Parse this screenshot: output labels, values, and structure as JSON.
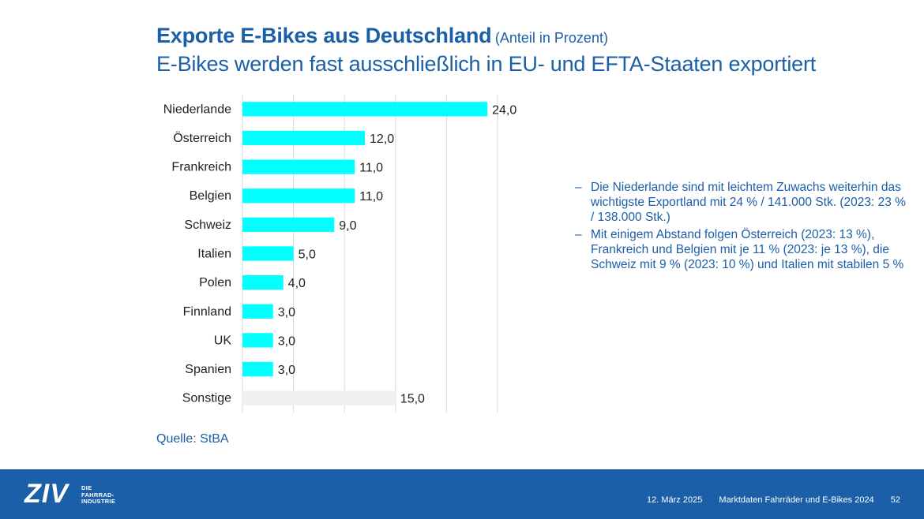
{
  "title": {
    "main": "Exporte E-Bikes aus Deutschland",
    "sub": "(Anteil in Prozent)",
    "line2": "E-Bikes werden fast ausschließlich in EU- und EFTA-Staaten exportiert"
  },
  "bullets": [
    "Die Niederlande sind mit leichtem Zuwachs weiterhin das wichtigste Exportland mit 24 % / 141.000 Stk. (2023: 23 % / 138.000 Stk.)",
    "Mit einigem Abstand folgen Österreich (2023: 13 %), Frankreich und Belgien mit je 11 % (2023: je 13 %), die Schweiz mit 9 % (2023: 10 %) und Italien mit stabilen 5 %"
  ],
  "bullet_dash": "–",
  "source": "Quelle: StBA",
  "footer": {
    "logo": "ZIV",
    "logo_line1": "DIE",
    "logo_line2": "FAHRRAD-",
    "logo_line3": "INDUSTRIE",
    "date": "12. März 2025",
    "doc_title": "Marktdaten Fahrräder und E-Bikes 2024",
    "page": "52"
  },
  "colors": {
    "brand_blue": "#1b5fa8",
    "bar_cyan": "#00ffff",
    "bar_other": "#f0f0f0",
    "gridline": "#d9d9d9",
    "label_text": "#1f1f1f"
  },
  "chart_data": {
    "type": "bar",
    "orientation": "horizontal",
    "categories": [
      "Niederlande",
      "Österreich",
      "Frankreich",
      "Belgien",
      "Schweiz",
      "Italien",
      "Polen",
      "Finnland",
      "UK",
      "Spanien",
      "Sonstige"
    ],
    "values": [
      24.0,
      12.0,
      11.0,
      11.0,
      9.0,
      5.0,
      4.0,
      3.0,
      3.0,
      3.0,
      15.0
    ],
    "value_labels": [
      "24,0",
      "12,0",
      "11,0",
      "11,0",
      "9,0",
      "5,0",
      "4,0",
      "3,0",
      "3,0",
      "3,0",
      "15,0"
    ],
    "highlighted": [
      true,
      true,
      true,
      true,
      true,
      true,
      true,
      true,
      true,
      true,
      false
    ],
    "xlim": [
      0,
      25
    ],
    "grid": true,
    "legend": "none"
  }
}
